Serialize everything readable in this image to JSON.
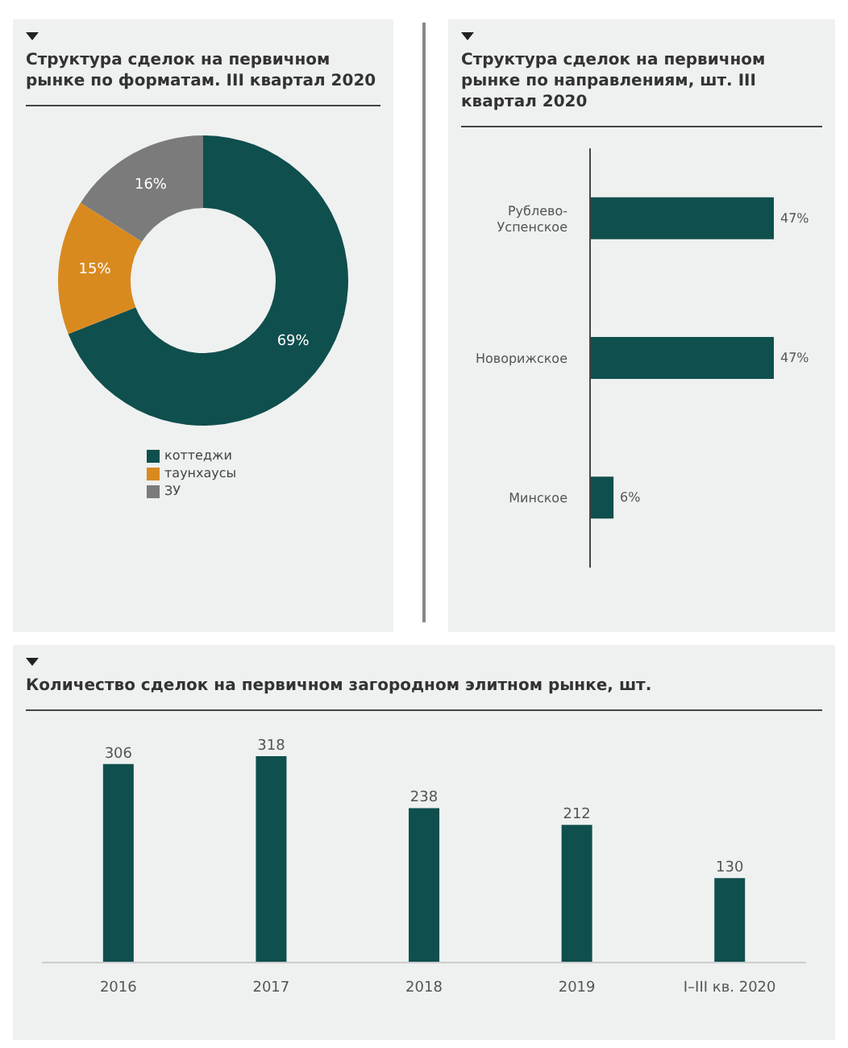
{
  "chart_data": [
    {
      "type": "donut",
      "title": "Структура сделок на первичном рынке по форматам. III квартал 2020",
      "categories": [
        "коттеджи",
        "таунхаусы",
        "ЗУ"
      ],
      "values": [
        69,
        15,
        16
      ],
      "colors": [
        "#0f4f4d",
        "#d98a1f",
        "#7b7b7b"
      ],
      "value_labels": [
        "69%",
        "15%",
        "16%"
      ],
      "legend": "bottom"
    },
    {
      "type": "bar",
      "orientation": "horizontal",
      "title": "Структура сделок на первичном рынке по направлениям, шт. III квартал 2020",
      "categories": [
        "Рублево-Успенское",
        "Новорижское",
        "Минское"
      ],
      "values": [
        47,
        47,
        6
      ],
      "color": "#0f4f4d",
      "value_labels": [
        "47%",
        "47%",
        "6%"
      ],
      "tick_labels": "y"
    },
    {
      "type": "bar",
      "title": "Количество сделок на первичном загородном элитном рынке, шт.",
      "categories": [
        "2016",
        "2017",
        "2018",
        "2019",
        "I–III кв. 2020"
      ],
      "values": [
        306,
        318,
        238,
        212,
        130
      ],
      "color": "#0f4f4d",
      "data_labels": true,
      "tick_labels": "x"
    }
  ]
}
